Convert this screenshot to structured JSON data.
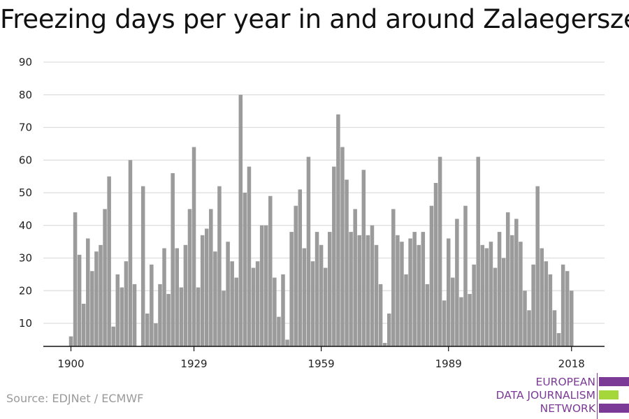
{
  "title": "Freezing days per year in and around Zalaegerszeg",
  "source": "Source: EDJNet / ECMWF",
  "logo": {
    "line1": "EUROPEAN",
    "line2": "DATA JOURNALISM",
    "line3": "NETWORK",
    "primary_color": "#7b3a96",
    "accent_color": "#a5d63a"
  },
  "colors": {
    "bar": "#9b9b9b",
    "grid": "#dddddd",
    "axis": "#111111"
  },
  "chart_data": {
    "type": "bar",
    "title": "Freezing days per year in and around Zalaegerszeg",
    "xlabel": "",
    "ylabel": "",
    "x_tick_labels": [
      "1900",
      "1929",
      "1959",
      "1989",
      "2018"
    ],
    "y_tick_labels": [
      "10",
      "20",
      "30",
      "40",
      "50",
      "60",
      "70",
      "80",
      "90"
    ],
    "ylim": [
      3,
      90
    ],
    "grid": true,
    "start_year": 1900,
    "end_year": 2018,
    "categories": [
      1900,
      1901,
      1902,
      1903,
      1904,
      1905,
      1906,
      1907,
      1908,
      1909,
      1910,
      1911,
      1912,
      1913,
      1914,
      1915,
      1916,
      1917,
      1918,
      1919,
      1920,
      1921,
      1922,
      1923,
      1924,
      1925,
      1926,
      1927,
      1928,
      1929,
      1930,
      1931,
      1932,
      1933,
      1934,
      1935,
      1936,
      1937,
      1938,
      1939,
      1940,
      1941,
      1942,
      1943,
      1944,
      1945,
      1946,
      1947,
      1948,
      1949,
      1950,
      1951,
      1952,
      1953,
      1954,
      1955,
      1956,
      1957,
      1958,
      1959,
      1960,
      1961,
      1962,
      1963,
      1964,
      1965,
      1966,
      1967,
      1968,
      1969,
      1970,
      1971,
      1972,
      1973,
      1974,
      1975,
      1976,
      1977,
      1978,
      1979,
      1980,
      1981,
      1982,
      1983,
      1984,
      1985,
      1986,
      1987,
      1988,
      1989,
      1990,
      1991,
      1992,
      1993,
      1994,
      1995,
      1996,
      1997,
      1998,
      1999,
      2000,
      2001,
      2002,
      2003,
      2004,
      2005,
      2006,
      2007,
      2008,
      2009,
      2010,
      2011,
      2012,
      2013,
      2014,
      2015,
      2016,
      2017,
      2018
    ],
    "values": [
      6,
      44,
      31,
      16,
      36,
      26,
      32,
      34,
      45,
      55,
      9,
      25,
      21,
      29,
      60,
      22,
      3,
      52,
      13,
      28,
      10,
      22,
      33,
      19,
      56,
      33,
      21,
      34,
      45,
      64,
      21,
      37,
      39,
      45,
      32,
      52,
      20,
      35,
      29,
      24,
      80,
      50,
      58,
      27,
      29,
      40,
      40,
      49,
      24,
      12,
      25,
      5,
      38,
      46,
      51,
      33,
      61,
      29,
      38,
      34,
      27,
      38,
      58,
      74,
      64,
      54,
      38,
      45,
      37,
      57,
      37,
      40,
      34,
      22,
      4,
      13,
      45,
      37,
      35,
      25,
      36,
      38,
      34,
      38,
      22,
      46,
      53,
      61,
      17,
      36,
      24,
      42,
      18,
      46,
      19,
      28,
      61,
      34,
      33,
      35,
      27,
      38,
      30,
      44,
      37,
      42,
      35,
      20,
      14,
      28,
      52,
      33,
      29,
      25,
      14,
      7,
      28,
      26,
      20
    ]
  }
}
